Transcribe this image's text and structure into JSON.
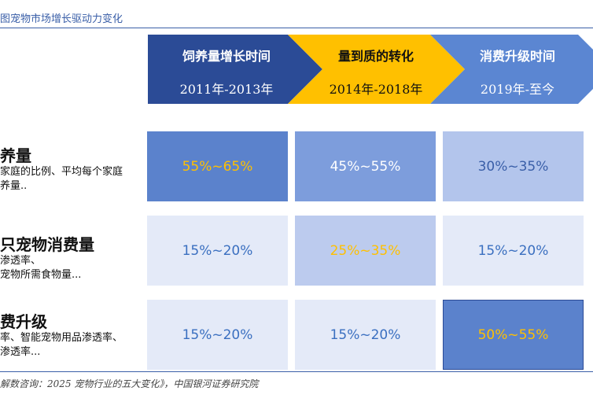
{
  "header": {
    "title": "图宠物市场增长驱动力变化"
  },
  "phases": [
    {
      "name": "饲养量增长时间",
      "range": "2011年-2013年",
      "fill": "#2b4b96",
      "text_color": "#ffffff"
    },
    {
      "name": "量到质的转化",
      "range": "2014年-2018年",
      "fill": "#ffc000",
      "text_color": "#111111"
    },
    {
      "name": "消费升级时间",
      "range": "2019年-至今",
      "fill": "#5b86d2",
      "text_color": "#ffffff"
    }
  ],
  "rows": [
    {
      "title": "养量",
      "desc": [
        "家庭的比例、平均每个家庭",
        "养量.."
      ],
      "cells": [
        {
          "value": "55%~65%",
          "bg": "#5b82cc",
          "color": "#ffc000"
        },
        {
          "value": "45%~55%",
          "bg": "#7d9ddc",
          "color": "#ffffff"
        },
        {
          "value": "30%~35%",
          "bg": "#b3c5ec",
          "color": "#3a5fa8"
        }
      ]
    },
    {
      "title": "只宠物消费量",
      "desc": [
        "渗透率、",
        "宠物所需食物量..."
      ],
      "cells": [
        {
          "value": "15%~20%",
          "bg": "#e4eaf8",
          "color": "#3a6fc0"
        },
        {
          "value": "25%~35%",
          "bg": "#bccbee",
          "color": "#ffc000"
        },
        {
          "value": "15%~20%",
          "bg": "#e4eaf8",
          "color": "#3a6fc0"
        }
      ]
    },
    {
      "title": "费升级",
      "desc": [
        "率、智能宠物用品渗透率、",
        "渗透率..."
      ],
      "cells": [
        {
          "value": "15%~20%",
          "bg": "#e4eaf8",
          "color": "#3a6fc0"
        },
        {
          "value": "15%~20%",
          "bg": "#e4eaf8",
          "color": "#3a6fc0"
        },
        {
          "value": "50%~55%",
          "bg": "#5b82cc",
          "color": "#ffc000"
        }
      ]
    }
  ],
  "source": "解数咨询：2025 宠物行业的五大变化》，中国银河证券研究院"
}
